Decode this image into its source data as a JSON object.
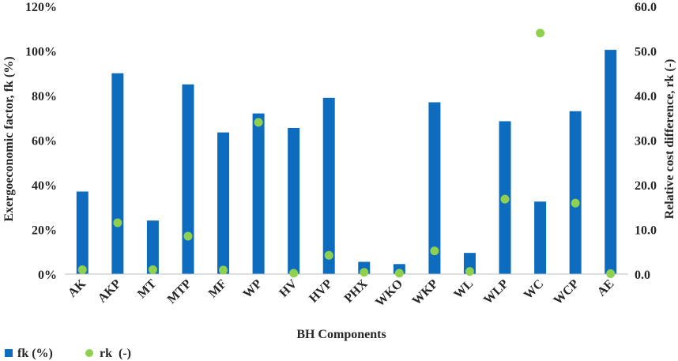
{
  "chart_data": {
    "type": "bar",
    "xlabel": "BH Components",
    "ylabel_left": "Exergoeconomic factor, fk (%)",
    "ylabel_right": "Relative cost difference, rk (-)",
    "categories": [
      "AK",
      "AKP",
      "MT",
      "MTP",
      "MF",
      "WP",
      "HV",
      "HVP",
      "PHX",
      "WKO",
      "WKP",
      "WL",
      "WLP",
      "WC",
      "WCP",
      "AE"
    ],
    "series": [
      {
        "name": "fk (%)",
        "type": "bar",
        "axis": "left",
        "color": "#0e6cbf",
        "values": [
          37,
          90,
          24,
          85,
          63.5,
          72,
          65.5,
          79,
          5.5,
          4.5,
          77,
          9.5,
          68.5,
          32.5,
          73,
          100.5
        ]
      },
      {
        "name": "rk  (-)",
        "type": "scatter",
        "axis": "right",
        "color": "#8fd14f",
        "values": [
          1.0,
          11.5,
          1.0,
          8.5,
          0.9,
          34.0,
          0.2,
          4.2,
          0.4,
          0.2,
          5.2,
          0.6,
          16.8,
          54.0,
          15.9,
          0.1
        ]
      }
    ],
    "ylim_left": [
      0,
      120
    ],
    "yticks_left": [
      "0%",
      "20%",
      "40%",
      "60%",
      "80%",
      "100%",
      "120%"
    ],
    "ylim_right": [
      0,
      60
    ],
    "yticks_right": [
      "0.0",
      "10.0",
      "20.0",
      "30.0",
      "40.0",
      "50.0",
      "60.0"
    ],
    "grid": false,
    "legend_position": "bottom-left"
  }
}
